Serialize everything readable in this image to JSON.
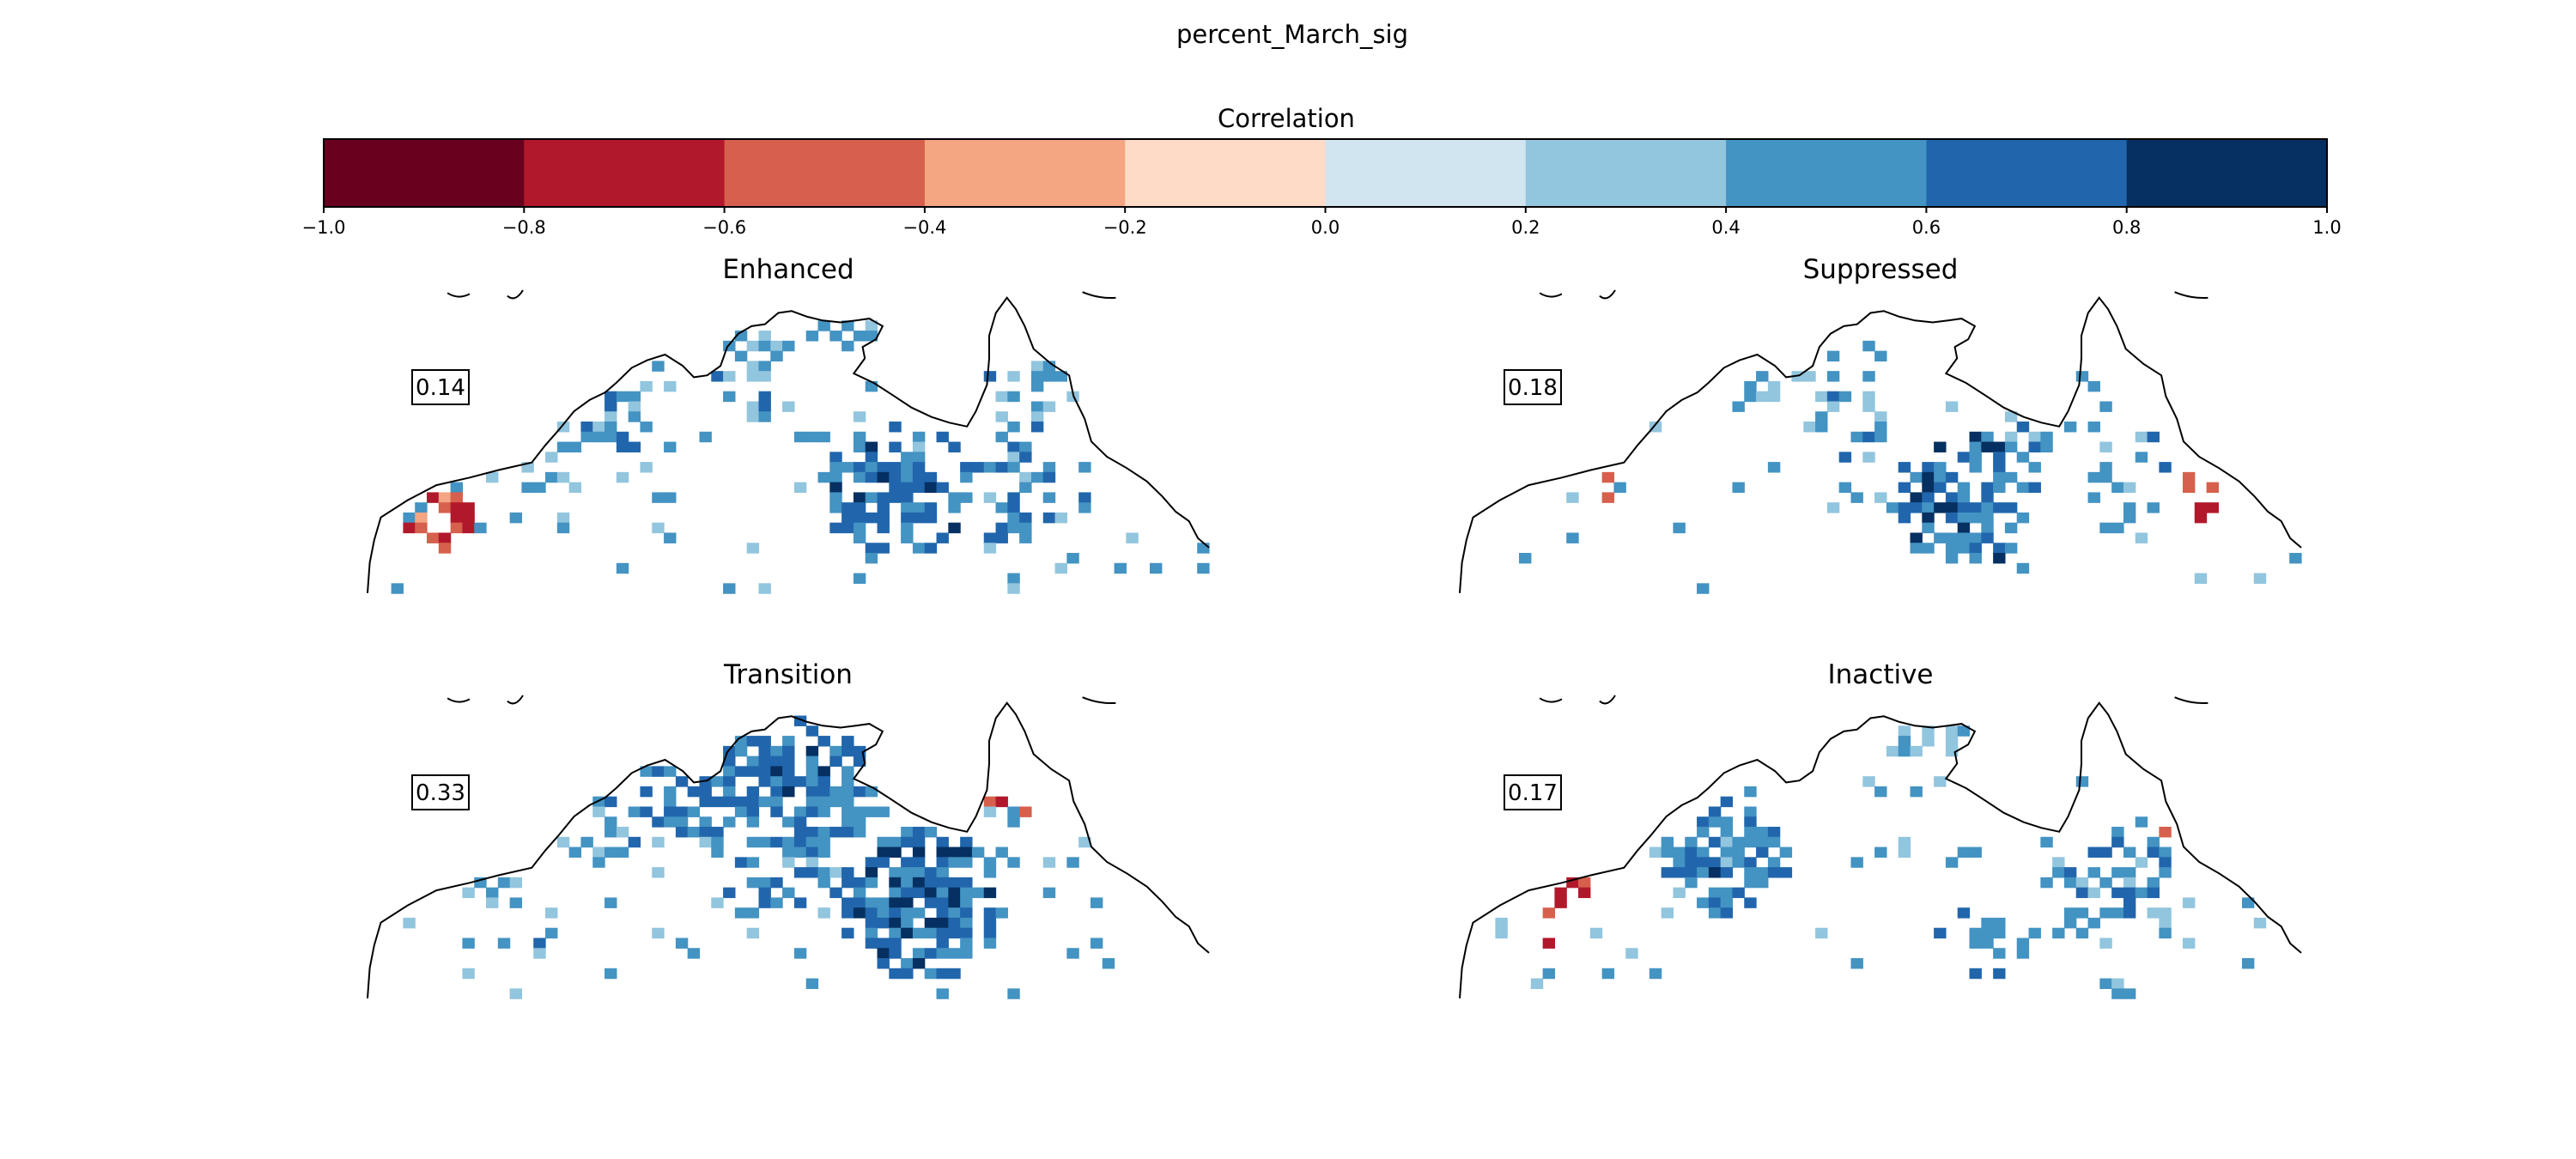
{
  "title": "percent_March_sig",
  "colorbar": {
    "label": "Correlation",
    "ticks": [
      "−1.0",
      "−0.8",
      "−0.6",
      "−0.4",
      "−0.2",
      "0.0",
      "0.2",
      "0.4",
      "0.6",
      "0.8",
      "1.0"
    ],
    "bin_edges": [
      -1.0,
      -0.8,
      -0.6,
      -0.4,
      -0.2,
      0.0,
      0.2,
      0.4,
      0.6,
      0.8,
      1.0
    ],
    "colors": [
      "#67001f",
      "#b2182b",
      "#d6604d",
      "#f4a582",
      "#fddbc7",
      "#d1e5f0",
      "#92c5de",
      "#4393c3",
      "#2166ac",
      "#053061"
    ]
  },
  "chart_data": [
    {
      "type": "heatmap",
      "title": "Enhanced",
      "annotation": "0.14",
      "clusters": [
        {
          "lon": 124.5,
          "lat": -17.0,
          "radius": 2.5,
          "density": 0.55,
          "value": 0.45
        },
        {
          "lon": 130.5,
          "lat": -13.5,
          "radius": 2.5,
          "density": 0.55,
          "value": 0.45
        },
        {
          "lon": 131.0,
          "lat": -16.0,
          "radius": 1.5,
          "density": 0.5,
          "value": 0.5
        },
        {
          "lon": 135.0,
          "lat": -12.5,
          "radius": 1.5,
          "density": 0.6,
          "value": 0.45
        },
        {
          "lon": 144.0,
          "lat": -15.5,
          "radius": 2.5,
          "density": 0.5,
          "value": 0.45
        },
        {
          "lon": 137.5,
          "lat": -21.0,
          "radius": 3.5,
          "density": 0.85,
          "value": 0.62
        },
        {
          "lon": 143.0,
          "lat": -21.5,
          "radius": 3.0,
          "density": 0.5,
          "value": 0.5
        },
        {
          "lon": 121.0,
          "lat": -19.5,
          "radius": 2.0,
          "density": 0.3,
          "value": 0.42
        },
        {
          "lon": 117.0,
          "lat": -22.5,
          "radius": 2.0,
          "density": 0.35,
          "value": -0.55
        },
        {
          "lon": 146.0,
          "lat": -17.0,
          "radius": 1.0,
          "density": 0.5,
          "value": -0.6
        }
      ]
    },
    {
      "type": "heatmap",
      "title": "Suppressed",
      "annotation": "0.18",
      "clusters": [
        {
          "lon": 136.5,
          "lat": -21.5,
          "radius": 3.5,
          "density": 0.9,
          "value": 0.65
        },
        {
          "lon": 131.0,
          "lat": -17.0,
          "radius": 2.5,
          "density": 0.35,
          "value": 0.45
        },
        {
          "lon": 140.0,
          "lat": -17.5,
          "radius": 2.0,
          "density": 0.45,
          "value": 0.45
        },
        {
          "lon": 143.5,
          "lat": -20.0,
          "radius": 2.5,
          "density": 0.35,
          "value": 0.45
        },
        {
          "lon": 128.0,
          "lat": -15.5,
          "radius": 2.0,
          "density": 0.2,
          "value": 0.4
        },
        {
          "lon": 146.5,
          "lat": -21.5,
          "radius": 1.5,
          "density": 0.4,
          "value": -0.6
        },
        {
          "lon": 120.5,
          "lat": -20.5,
          "radius": 1.5,
          "density": 0.4,
          "value": -0.55
        }
      ]
    },
    {
      "type": "heatmap",
      "title": "Transition",
      "annotation": "0.33",
      "clusters": [
        {
          "lon": 129.5,
          "lat": -15.0,
          "radius": 4.0,
          "density": 0.8,
          "value": 0.6
        },
        {
          "lon": 134.0,
          "lat": -15.0,
          "radius": 3.5,
          "density": 0.85,
          "value": 0.62
        },
        {
          "lon": 138.5,
          "lat": -21.5,
          "radius": 4.0,
          "density": 0.85,
          "value": 0.68
        },
        {
          "lon": 132.0,
          "lat": -20.0,
          "radius": 3.0,
          "density": 0.5,
          "value": 0.5
        },
        {
          "lon": 124.5,
          "lat": -17.5,
          "radius": 2.5,
          "density": 0.55,
          "value": 0.5
        },
        {
          "lon": 144.0,
          "lat": -19.0,
          "radius": 2.5,
          "density": 0.3,
          "value": 0.45
        },
        {
          "lon": 120.0,
          "lat": -21.5,
          "radius": 2.5,
          "density": 0.2,
          "value": 0.42
        },
        {
          "lon": 142.5,
          "lat": -16.0,
          "radius": 1.0,
          "density": 0.5,
          "value": -0.6
        }
      ]
    },
    {
      "type": "heatmap",
      "title": "Inactive",
      "annotation": "0.17",
      "clusters": [
        {
          "lon": 125.5,
          "lat": -19.0,
          "radius": 3.0,
          "density": 0.9,
          "value": 0.6
        },
        {
          "lon": 137.5,
          "lat": -23.0,
          "radius": 2.5,
          "density": 0.4,
          "value": 0.5
        },
        {
          "lon": 143.0,
          "lat": -20.5,
          "radius": 3.0,
          "density": 0.5,
          "value": 0.5
        },
        {
          "lon": 135.0,
          "lat": -13.0,
          "radius": 2.0,
          "density": 0.35,
          "value": 0.45
        },
        {
          "lon": 141.0,
          "lat": -16.0,
          "radius": 2.0,
          "density": 0.25,
          "value": 0.42
        },
        {
          "lon": 118.5,
          "lat": -21.5,
          "radius": 2.5,
          "density": 0.2,
          "value": -0.58
        },
        {
          "lon": 145.5,
          "lat": -17.0,
          "radius": 1.5,
          "density": 0.3,
          "value": -0.6
        }
      ]
    }
  ]
}
